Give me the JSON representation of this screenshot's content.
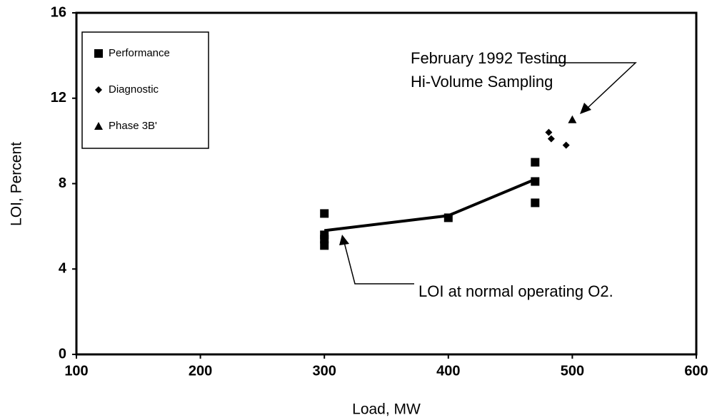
{
  "chart_data": {
    "type": "scatter",
    "x_label": "Load, MW",
    "y_label": "LOI, Percent",
    "xlim": [
      100,
      600
    ],
    "xticks": [
      100,
      200,
      300,
      400,
      500,
      600
    ],
    "ylim": [
      0,
      16
    ],
    "yticks": [
      0,
      4,
      8,
      12,
      16
    ],
    "grid": false,
    "legend": "upper left",
    "series": [
      {
        "name": "Performance",
        "color": "#000000",
        "marker": "square",
        "x": [
          300,
          300,
          300,
          300,
          400,
          470,
          470,
          470
        ],
        "values": [
          6.6,
          5.6,
          5.4,
          5.1,
          6.4,
          9.0,
          8.1,
          7.1
        ]
      },
      {
        "name": "Diagnostic",
        "color": "#000000",
        "marker": "diamond",
        "x": [
          481,
          483,
          495
        ],
        "values": [
          10.4,
          10.1,
          9.8
        ]
      },
      {
        "name": "Phase 3B'",
        "color": "#000000",
        "marker": "triangle",
        "x": [
          500
        ],
        "values": [
          11.0
        ]
      }
    ],
    "fit_line": {
      "color": "#000000",
      "x": [
        300,
        400,
        470
      ],
      "values": [
        5.8,
        6.5,
        8.2
      ]
    },
    "annotations": [
      "February 1992 Testing",
      "Hi-Volume Sampling",
      "LOI at normal operating O2."
    ]
  }
}
